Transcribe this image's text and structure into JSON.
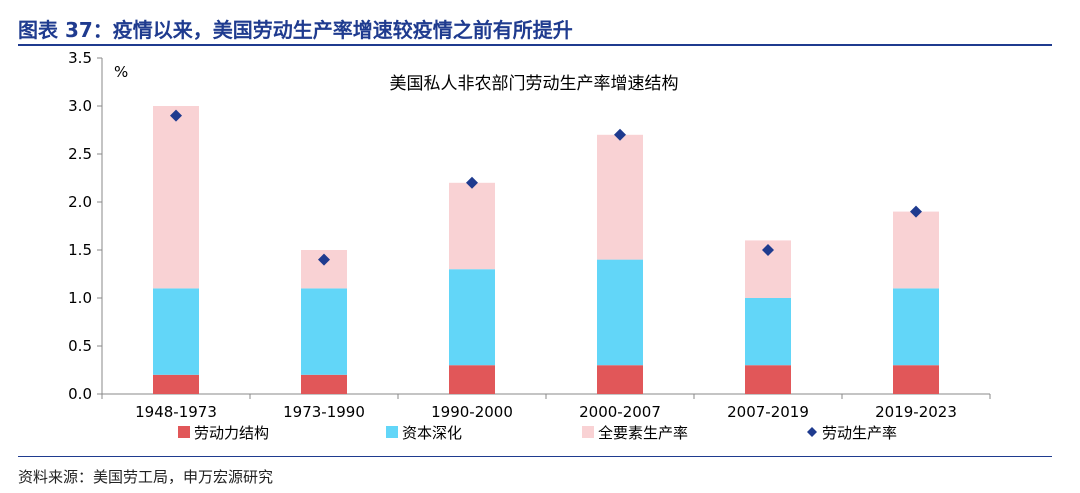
{
  "figure": {
    "title": "图表 37：疫情以来，美国劳动生产率增速较疫情之前有所提升",
    "source": "资料来源：美国劳工局，申万宏源研究"
  },
  "colors": {
    "brand": "#1f3b8f",
    "labor_structure": "#e15759",
    "capital_deepening": "#62d6f8",
    "tfp": "#f9d2d4",
    "labor_productivity": "#1f3b8f"
  },
  "chart_data": {
    "type": "bar",
    "stacked": true,
    "title": "美国私人非农部门劳动生产率增速结构",
    "unit": "%",
    "categories": [
      "1948-1973",
      "1973-1990",
      "1990-2000",
      "2000-2007",
      "2007-2019",
      "2019-2023"
    ],
    "series": [
      {
        "name": "劳动力结构",
        "kind": "bar",
        "values": [
          0.2,
          0.2,
          0.3,
          0.3,
          0.3,
          0.3
        ]
      },
      {
        "name": "资本深化",
        "kind": "bar",
        "values": [
          0.9,
          0.9,
          1.0,
          1.1,
          0.7,
          0.8
        ]
      },
      {
        "name": "全要素生产率",
        "kind": "bar",
        "values": [
          1.9,
          0.4,
          0.9,
          1.3,
          0.6,
          0.8
        ]
      },
      {
        "name": "劳动生产率",
        "kind": "scatter",
        "marker": "diamond",
        "values": [
          2.9,
          1.4,
          2.2,
          2.7,
          1.5,
          1.9
        ]
      }
    ],
    "ylim": [
      0,
      3.5
    ],
    "yticks": [
      "0.0",
      "0.5",
      "1.0",
      "1.5",
      "2.0",
      "2.5",
      "3.0",
      "3.5"
    ],
    "legend": "bottom",
    "grid": false
  }
}
